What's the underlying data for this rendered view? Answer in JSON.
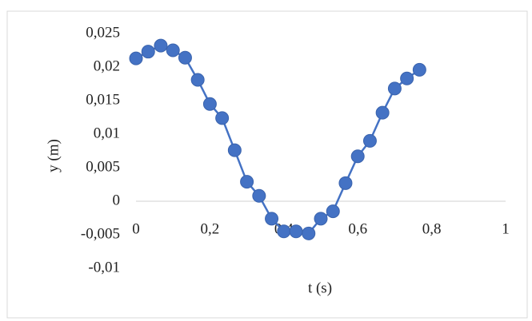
{
  "chart_data": {
    "type": "scatter",
    "xlabel": "t (s)",
    "ylabel": "y (m)",
    "series": [
      {
        "name": null,
        "color": "#4472c4",
        "x": [
          0,
          0.033,
          0.067,
          0.1,
          0.133,
          0.167,
          0.2,
          0.233,
          0.267,
          0.3,
          0.333,
          0.367,
          0.4,
          0.433,
          0.467,
          0.5,
          0.533,
          0.567,
          0.6,
          0.633,
          0.667,
          0.7,
          0.733,
          0.767
        ],
        "values": [
          0.0213,
          0.0223,
          0.0232,
          0.0225,
          0.0214,
          0.0181,
          0.0145,
          0.0124,
          0.0076,
          0.0029,
          0.0008,
          -0.0026,
          -0.0045,
          -0.0045,
          -0.0048,
          -0.0026,
          -0.0015,
          0.0027,
          0.0067,
          0.009,
          0.0132,
          0.0168,
          0.0183,
          0.0196
        ]
      }
    ],
    "xlim": [
      0,
      1
    ],
    "xticks": [
      0,
      {
        "value": 0.2,
        "label": "0,2"
      },
      {
        "value": 0.4,
        "label": "0,4"
      },
      {
        "value": 0.6,
        "label": "0,6"
      },
      {
        "value": 0.8,
        "label": "0,8"
      },
      1
    ],
    "ylim": [
      -0.01,
      0.025
    ],
    "yticks": [
      {
        "value": -0.01,
        "label": "-0,01"
      },
      {
        "value": -0.005,
        "label": "-0,005"
      },
      0,
      {
        "value": 0.005,
        "label": "0,005"
      },
      {
        "value": 0.01,
        "label": "0,01"
      },
      {
        "value": 0.015,
        "label": "0,015"
      },
      {
        "value": 0.02,
        "label": "0,02"
      },
      {
        "value": 0.025,
        "label": "0,025"
      }
    ],
    "grid": false
  }
}
